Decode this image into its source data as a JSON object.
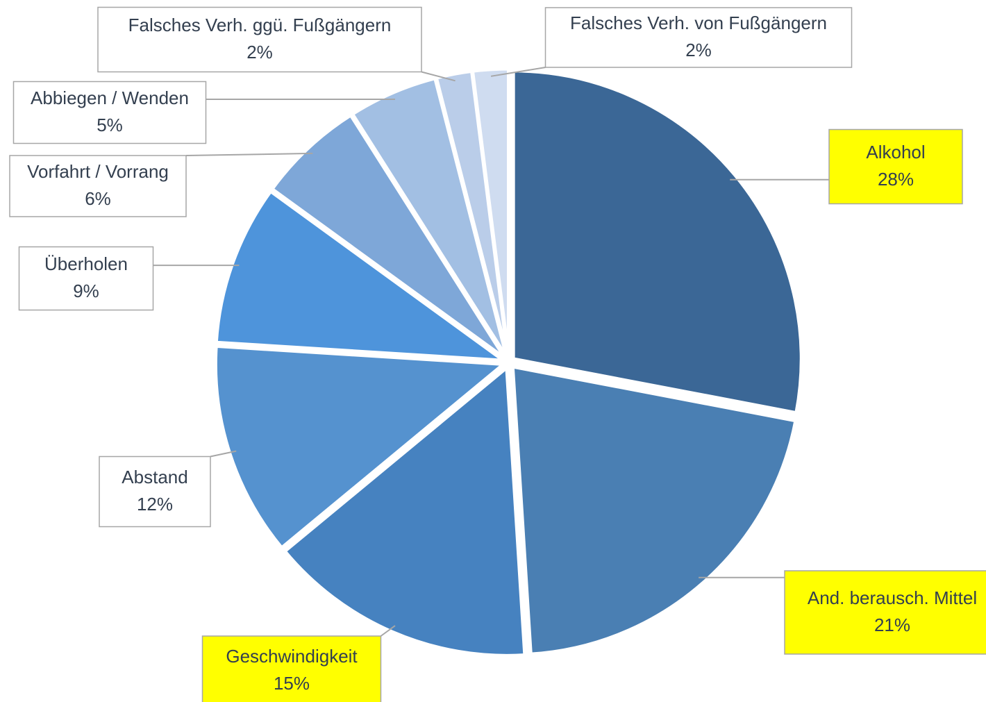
{
  "chart_data": {
    "type": "pie",
    "categories": [
      "Alkohol",
      "And. berausch. Mittel",
      "Geschwindigkeit",
      "Abstand",
      "Überholen",
      "Vorfahrt / Vorrang",
      "Abbiegen / Wenden",
      "Falsches Verh. ggü. Fußgängern",
      "Falsches Verh. von Fußgängern"
    ],
    "values": [
      28,
      21,
      15,
      12,
      9,
      6,
      5,
      2,
      2
    ],
    "value_labels": [
      "28%",
      "21%",
      "15%",
      "12%",
      "9%",
      "6%",
      "5%",
      "2%",
      "2%"
    ],
    "colors": [
      "#3b6796",
      "#4a7fb3",
      "#4682c0",
      "#5592cf",
      "#4e94db",
      "#7ea7d8",
      "#a2bfe3",
      "#bacde9",
      "#cfdcf0"
    ],
    "label_colors": [
      "#ffff00",
      "#ffff00",
      "#ffff00",
      "#ffffff",
      "#ffffff",
      "#ffffff",
      "#ffffff",
      "#ffffff",
      "#ffffff"
    ]
  }
}
